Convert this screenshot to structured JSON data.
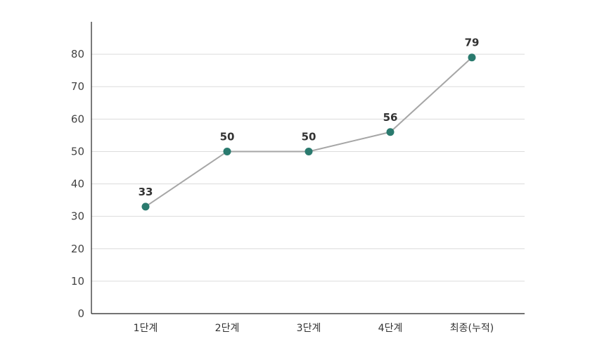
{
  "chart_data": {
    "type": "line",
    "categories": [
      "1단계",
      "2단계",
      "3단계",
      "4단계",
      "최종(누적)"
    ],
    "values": [
      33,
      50,
      50,
      56,
      79
    ],
    "data_labels": [
      "33",
      "50",
      "50",
      "56",
      "79"
    ],
    "ylim": [
      0,
      90
    ],
    "yticks": [
      0,
      10,
      20,
      30,
      40,
      50,
      60,
      70,
      80
    ],
    "grid": true,
    "legend": "none",
    "colors": {
      "line": "#a6a6a6",
      "marker": "#2a7a6e",
      "grid": "#dcdcdc",
      "axis": "#222222"
    }
  }
}
